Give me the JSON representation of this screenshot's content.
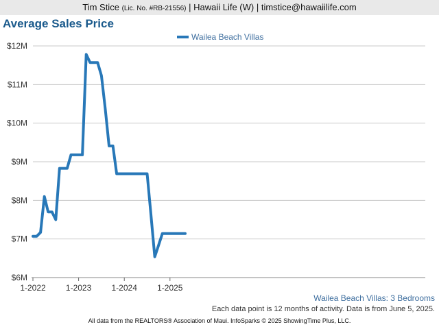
{
  "header": {
    "agent_name": "Tim Stice",
    "license": "(Lic. No. #RB-21556)",
    "rest": "| Hawaii Life (W) | timstice@hawaiilife.com"
  },
  "colors": {
    "series": "#2878b8",
    "title": "#1a5a8c"
  },
  "chart_data": {
    "type": "line",
    "title": "Average Sales Price",
    "legend_position": "top-center",
    "grid": true,
    "x_ticks": [
      "1-2022",
      "1-2023",
      "1-2024",
      "1-2025"
    ],
    "xlim": [
      "2022-01",
      "2025-05"
    ],
    "ylim": [
      6000000,
      12000000
    ],
    "y_ticks": [
      {
        "value": 6000000,
        "label": "$6M"
      },
      {
        "value": 7000000,
        "label": "$7M"
      },
      {
        "value": 8000000,
        "label": "$8M"
      },
      {
        "value": 9000000,
        "label": "$9M"
      },
      {
        "value": 10000000,
        "label": "$10M"
      },
      {
        "value": 11000000,
        "label": "$11M"
      },
      {
        "value": 12000000,
        "label": "$12M"
      }
    ],
    "series": [
      {
        "name": "Wailea Beach Villas",
        "points": [
          {
            "x": "2022-01",
            "y": 7070000
          },
          {
            "x": "2022-02",
            "y": 7070000
          },
          {
            "x": "2022-03",
            "y": 7170000
          },
          {
            "x": "2022-04",
            "y": 8100000
          },
          {
            "x": "2022-05",
            "y": 7700000
          },
          {
            "x": "2022-06",
            "y": 7700000
          },
          {
            "x": "2022-07",
            "y": 7500000
          },
          {
            "x": "2022-08",
            "y": 8830000
          },
          {
            "x": "2022-09",
            "y": 8830000
          },
          {
            "x": "2022-10",
            "y": 8830000
          },
          {
            "x": "2022-11",
            "y": 9180000
          },
          {
            "x": "2022-12",
            "y": 9180000
          },
          {
            "x": "2023-01",
            "y": 9180000
          },
          {
            "x": "2023-02",
            "y": 9180000
          },
          {
            "x": "2023-03",
            "y": 11780000
          },
          {
            "x": "2023-04",
            "y": 11570000
          },
          {
            "x": "2023-05",
            "y": 11570000
          },
          {
            "x": "2023-06",
            "y": 11570000
          },
          {
            "x": "2023-07",
            "y": 11230000
          },
          {
            "x": "2023-08",
            "y": 10380000
          },
          {
            "x": "2023-09",
            "y": 9410000
          },
          {
            "x": "2023-10",
            "y": 9410000
          },
          {
            "x": "2023-11",
            "y": 8690000
          },
          {
            "x": "2023-12",
            "y": 8690000
          },
          {
            "x": "2024-01",
            "y": 8690000
          },
          {
            "x": "2024-02",
            "y": 8690000
          },
          {
            "x": "2024-03",
            "y": 8690000
          },
          {
            "x": "2024-04",
            "y": 8690000
          },
          {
            "x": "2024-05",
            "y": 8690000
          },
          {
            "x": "2024-06",
            "y": 8690000
          },
          {
            "x": "2024-07",
            "y": 8690000
          },
          {
            "x": "2024-08",
            "y": 7640000
          },
          {
            "x": "2024-09",
            "y": 6540000
          },
          {
            "x": "2024-10",
            "y": 6840000
          },
          {
            "x": "2024-11",
            "y": 7140000
          },
          {
            "x": "2024-12",
            "y": 7140000
          },
          {
            "x": "2025-01",
            "y": 7140000
          },
          {
            "x": "2025-02",
            "y": 7140000
          },
          {
            "x": "2025-03",
            "y": 7140000
          },
          {
            "x": "2025-04",
            "y": 7140000
          },
          {
            "x": "2025-05",
            "y": 7140000
          }
        ]
      }
    ],
    "caption_series": "Wailea Beach Villas: 3 Bedrooms",
    "caption_note": "Each data point is 12 months of activity. Data is from June 5, 2025."
  },
  "footer": "All data from the REALTORS® Association of Maui. InfoSparks © 2025 ShowingTime Plus, LLC."
}
